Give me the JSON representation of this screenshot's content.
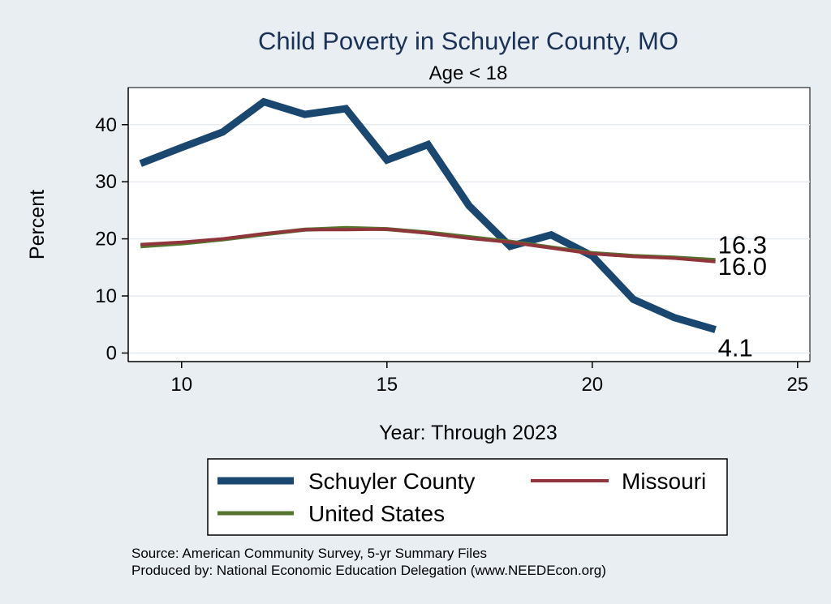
{
  "chart_data": {
    "type": "line",
    "title": "Child Poverty in Schuyler County, MO",
    "subtitle": "Age < 18",
    "xlabel": "Year: Through 2023",
    "ylabel": "Percent",
    "xlim": [
      8.7,
      25.3
    ],
    "ylim": [
      -1.5,
      46.5
    ],
    "xticks": [
      10,
      15,
      20,
      25
    ],
    "yticks": [
      0,
      10,
      20,
      30,
      40
    ],
    "grid": true,
    "legend_position": "bottom",
    "x": [
      9,
      10,
      11,
      12,
      13,
      14,
      15,
      16,
      17,
      18,
      19,
      20,
      21,
      22,
      23
    ],
    "series": [
      {
        "name": "Schuyler County",
        "color": "#1a476f",
        "width": "thick",
        "values": [
          33.2,
          36.0,
          38.7,
          44.0,
          41.8,
          42.8,
          33.8,
          36.5,
          25.8,
          18.7,
          20.7,
          17.0,
          9.4,
          6.2,
          4.1
        ],
        "end_label": "4.1"
      },
      {
        "name": "Missouri",
        "color": "#90353b",
        "width": "thin",
        "values": [
          19.0,
          19.4,
          20.0,
          20.9,
          21.6,
          21.6,
          21.7,
          21.0,
          20.1,
          19.4,
          18.4,
          17.4,
          16.9,
          16.6,
          16.0
        ],
        "end_label": "16.0"
      },
      {
        "name": "United States",
        "color": "#55752f",
        "width": "medium",
        "values": [
          18.7,
          19.2,
          19.9,
          20.8,
          21.6,
          21.9,
          21.7,
          21.1,
          20.3,
          19.5,
          18.5,
          17.5,
          17.0,
          16.7,
          16.3
        ],
        "end_label": "16.3"
      }
    ]
  },
  "legend": {
    "items": [
      "Schuyler County",
      "Missouri",
      "United States"
    ]
  },
  "notes": {
    "source": "Source: American Community Survey, 5-yr Summary Files",
    "produced_by": "Produced by: National Economic Education Delegation (www.NEEDEcon.org)"
  }
}
